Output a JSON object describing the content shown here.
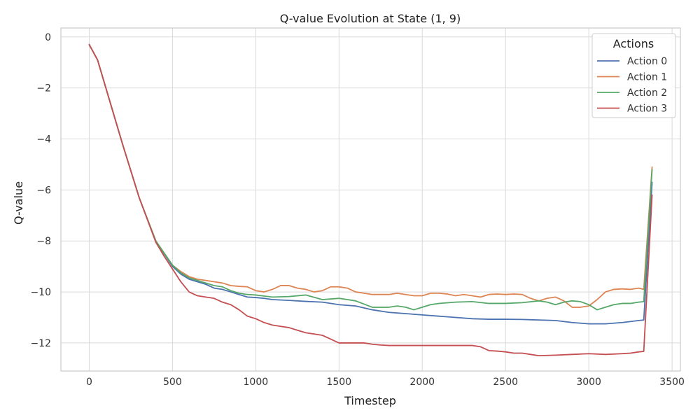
{
  "chart_data": {
    "type": "line",
    "title": "Q-value Evolution at State (1, 9)",
    "xlabel": "Timestep",
    "ylabel": "Q-value",
    "xlim": [
      -170,
      3550
    ],
    "ylim": [
      -13.1,
      0.35
    ],
    "xticks": [
      0,
      500,
      1000,
      1500,
      2000,
      2500,
      3000,
      3500
    ],
    "yticks": [
      0,
      -2,
      -4,
      -6,
      -8,
      -10,
      -12
    ],
    "ytick_labels": [
      "0",
      "−2",
      "−4",
      "−6",
      "−8",
      "−10",
      "−12"
    ],
    "grid": true,
    "legend": {
      "title": "Actions",
      "placement": "top-right"
    },
    "series": [
      {
        "name": "Action 0",
        "color": "#4c72b0",
        "x": [
          0,
          50,
          100,
          200,
          300,
          400,
          500,
          550,
          600,
          650,
          700,
          750,
          800,
          850,
          900,
          950,
          1000,
          1050,
          1100,
          1200,
          1300,
          1400,
          1500,
          1600,
          1700,
          1800,
          1900,
          2000,
          2100,
          2200,
          2300,
          2400,
          2500,
          2600,
          2700,
          2800,
          2900,
          3000,
          3100,
          3200,
          3300,
          3330,
          3380
        ],
        "y": [
          -0.3,
          -0.9,
          -2.0,
          -4.2,
          -6.3,
          -8.0,
          -9.0,
          -9.3,
          -9.5,
          -9.6,
          -9.7,
          -9.85,
          -9.9,
          -10.0,
          -10.1,
          -10.2,
          -10.22,
          -10.25,
          -10.3,
          -10.33,
          -10.37,
          -10.4,
          -10.5,
          -10.55,
          -10.7,
          -10.8,
          -10.85,
          -10.9,
          -10.95,
          -11.0,
          -11.05,
          -11.07,
          -11.07,
          -11.08,
          -11.1,
          -11.12,
          -11.2,
          -11.25,
          -11.25,
          -11.2,
          -11.12,
          -11.1,
          -5.7
        ]
      },
      {
        "name": "Action 1",
        "color": "#dd8452",
        "x": [
          0,
          50,
          100,
          200,
          300,
          400,
          500,
          550,
          600,
          650,
          700,
          750,
          800,
          850,
          900,
          950,
          1000,
          1050,
          1100,
          1150,
          1200,
          1250,
          1300,
          1350,
          1400,
          1450,
          1500,
          1550,
          1600,
          1650,
          1700,
          1750,
          1800,
          1850,
          1900,
          1950,
          2000,
          2050,
          2100,
          2150,
          2200,
          2250,
          2300,
          2350,
          2400,
          2450,
          2500,
          2550,
          2600,
          2650,
          2700,
          2750,
          2800,
          2850,
          2900,
          2950,
          3000,
          3050,
          3100,
          3150,
          3200,
          3250,
          3300,
          3330,
          3380
        ],
        "y": [
          -0.3,
          -0.9,
          -2.0,
          -4.2,
          -6.3,
          -8.0,
          -8.95,
          -9.2,
          -9.4,
          -9.5,
          -9.55,
          -9.6,
          -9.65,
          -9.75,
          -9.78,
          -9.8,
          -9.95,
          -10.0,
          -9.9,
          -9.75,
          -9.75,
          -9.85,
          -9.9,
          -10.0,
          -9.95,
          -9.8,
          -9.8,
          -9.85,
          -10.0,
          -10.05,
          -10.1,
          -10.1,
          -10.1,
          -10.05,
          -10.1,
          -10.15,
          -10.15,
          -10.05,
          -10.05,
          -10.08,
          -10.15,
          -10.1,
          -10.15,
          -10.2,
          -10.1,
          -10.08,
          -10.1,
          -10.08,
          -10.1,
          -10.25,
          -10.35,
          -10.25,
          -10.2,
          -10.35,
          -10.6,
          -10.6,
          -10.55,
          -10.3,
          -10.0,
          -9.9,
          -9.88,
          -9.9,
          -9.85,
          -9.9,
          -5.1
        ]
      },
      {
        "name": "Action 2",
        "color": "#55a868",
        "x": [
          0,
          50,
          100,
          200,
          300,
          400,
          500,
          550,
          600,
          650,
          700,
          750,
          800,
          850,
          900,
          950,
          1000,
          1100,
          1200,
          1300,
          1400,
          1500,
          1600,
          1700,
          1800,
          1850,
          1900,
          1950,
          2000,
          2050,
          2100,
          2200,
          2300,
          2400,
          2500,
          2600,
          2700,
          2750,
          2800,
          2850,
          2900,
          2950,
          3000,
          3050,
          3100,
          3150,
          3200,
          3250,
          3300,
          3330,
          3380
        ],
        "y": [
          -0.3,
          -0.9,
          -2.0,
          -4.2,
          -6.3,
          -8.0,
          -8.95,
          -9.25,
          -9.45,
          -9.55,
          -9.65,
          -9.75,
          -9.8,
          -9.95,
          -10.05,
          -10.1,
          -10.12,
          -10.2,
          -10.18,
          -10.12,
          -10.3,
          -10.25,
          -10.35,
          -10.6,
          -10.6,
          -10.55,
          -10.6,
          -10.7,
          -10.6,
          -10.5,
          -10.45,
          -10.4,
          -10.38,
          -10.45,
          -10.45,
          -10.42,
          -10.35,
          -10.4,
          -10.5,
          -10.4,
          -10.35,
          -10.38,
          -10.5,
          -10.7,
          -10.6,
          -10.5,
          -10.45,
          -10.45,
          -10.4,
          -10.38,
          -5.2
        ]
      },
      {
        "name": "Action 3",
        "color": "#c44e52",
        "x": [
          0,
          50,
          100,
          200,
          300,
          400,
          450,
          500,
          550,
          600,
          650,
          700,
          750,
          800,
          850,
          900,
          950,
          1000,
          1050,
          1100,
          1150,
          1200,
          1250,
          1300,
          1350,
          1400,
          1450,
          1500,
          1550,
          1600,
          1650,
          1700,
          1750,
          1800,
          1900,
          2000,
          2100,
          2200,
          2300,
          2350,
          2400,
          2450,
          2500,
          2550,
          2600,
          2650,
          2700,
          2800,
          2900,
          3000,
          3100,
          3200,
          3250,
          3300,
          3330,
          3380
        ],
        "y": [
          -0.3,
          -0.9,
          -2.0,
          -4.2,
          -6.3,
          -8.05,
          -8.6,
          -9.1,
          -9.6,
          -10.0,
          -10.15,
          -10.2,
          -10.25,
          -10.4,
          -10.5,
          -10.7,
          -10.95,
          -11.05,
          -11.2,
          -11.3,
          -11.35,
          -11.4,
          -11.5,
          -11.6,
          -11.65,
          -11.7,
          -11.85,
          -12.0,
          -12.0,
          -12.0,
          -12.0,
          -12.05,
          -12.08,
          -12.1,
          -12.1,
          -12.1,
          -12.1,
          -12.1,
          -12.1,
          -12.15,
          -12.3,
          -12.32,
          -12.35,
          -12.4,
          -12.4,
          -12.45,
          -12.5,
          -12.48,
          -12.45,
          -12.42,
          -12.45,
          -12.42,
          -12.4,
          -12.35,
          -12.33,
          -6.2
        ]
      }
    ]
  }
}
